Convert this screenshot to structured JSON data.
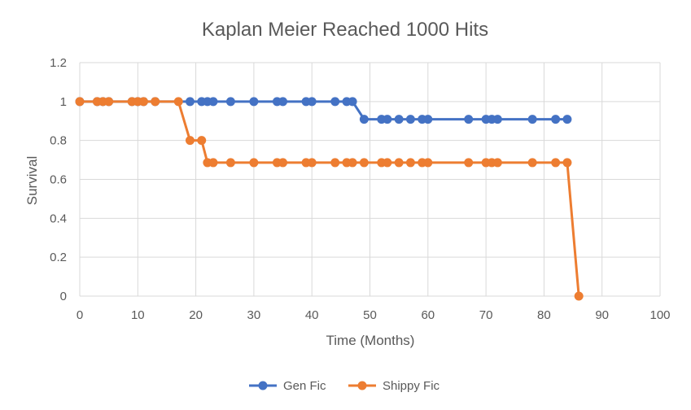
{
  "chart_data": {
    "type": "line",
    "title": "Kaplan Meier Reached 1000 Hits",
    "xlabel": "Time (Months)",
    "ylabel": "Survival",
    "xlim": [
      0,
      100
    ],
    "ylim": [
      0,
      1.2
    ],
    "x_ticks": [
      0,
      10,
      20,
      30,
      40,
      50,
      60,
      70,
      80,
      90,
      100
    ],
    "y_ticks": [
      0,
      0.2,
      0.4,
      0.6,
      0.8,
      1,
      1.2
    ],
    "grid": true,
    "legend_position": "bottom",
    "series": [
      {
        "name": "Gen Fic",
        "color": "#4472c4",
        "points": [
          [
            0,
            1
          ],
          [
            3,
            1
          ],
          [
            4,
            1
          ],
          [
            5,
            1
          ],
          [
            9,
            1
          ],
          [
            10,
            1
          ],
          [
            11,
            1
          ],
          [
            13,
            1
          ],
          [
            19,
            1
          ],
          [
            21,
            1
          ],
          [
            22,
            1
          ],
          [
            23,
            1
          ],
          [
            26,
            1
          ],
          [
            30,
            1
          ],
          [
            34,
            1
          ],
          [
            35,
            1
          ],
          [
            39,
            1
          ],
          [
            40,
            1
          ],
          [
            44,
            1
          ],
          [
            46,
            1
          ],
          [
            47,
            1
          ],
          [
            49,
            0.909
          ],
          [
            52,
            0.909
          ],
          [
            53,
            0.909
          ],
          [
            55,
            0.909
          ],
          [
            57,
            0.909
          ],
          [
            59,
            0.909
          ],
          [
            60,
            0.909
          ],
          [
            67,
            0.909
          ],
          [
            70,
            0.909
          ],
          [
            71,
            0.909
          ],
          [
            72,
            0.909
          ],
          [
            78,
            0.909
          ],
          [
            82,
            0.909
          ],
          [
            84,
            0.909
          ]
        ]
      },
      {
        "name": "Shippy Fic",
        "color": "#ed7d31",
        "points": [
          [
            0,
            1
          ],
          [
            3,
            1
          ],
          [
            4,
            1
          ],
          [
            5,
            1
          ],
          [
            9,
            1
          ],
          [
            10,
            1
          ],
          [
            11,
            1
          ],
          [
            13,
            1
          ],
          [
            17,
            1
          ],
          [
            19,
            0.8
          ],
          [
            21,
            0.8
          ],
          [
            22,
            0.686
          ],
          [
            23,
            0.686
          ],
          [
            26,
            0.686
          ],
          [
            30,
            0.686
          ],
          [
            34,
            0.686
          ],
          [
            35,
            0.686
          ],
          [
            39,
            0.686
          ],
          [
            40,
            0.686
          ],
          [
            44,
            0.686
          ],
          [
            46,
            0.686
          ],
          [
            47,
            0.686
          ],
          [
            49,
            0.686
          ],
          [
            52,
            0.686
          ],
          [
            53,
            0.686
          ],
          [
            55,
            0.686
          ],
          [
            57,
            0.686
          ],
          [
            59,
            0.686
          ],
          [
            60,
            0.686
          ],
          [
            67,
            0.686
          ],
          [
            70,
            0.686
          ],
          [
            71,
            0.686
          ],
          [
            72,
            0.686
          ],
          [
            78,
            0.686
          ],
          [
            82,
            0.686
          ],
          [
            84,
            0.686
          ],
          [
            86,
            0
          ]
        ]
      }
    ]
  }
}
